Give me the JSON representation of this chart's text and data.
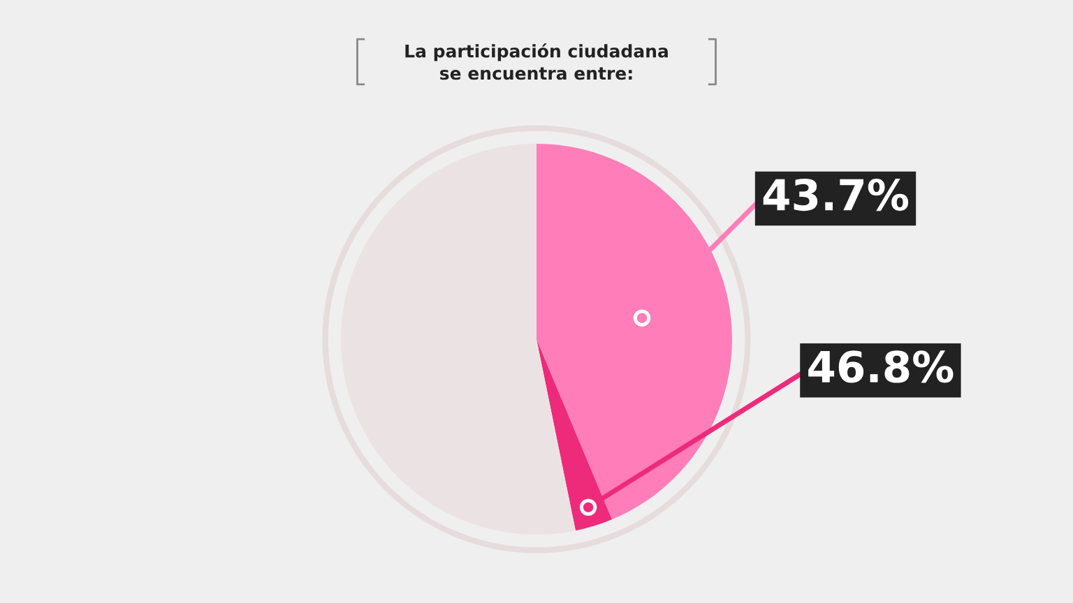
{
  "chart_data": {
    "type": "pie",
    "title": "La participación ciudadana\nse encuentra entre:",
    "categories": [
      null,
      null,
      null
    ],
    "values": [
      43.7,
      3.1,
      53.2
    ],
    "colors": [
      "#ff7eb9",
      "#ee2a7b",
      "#ebe3e3"
    ],
    "value_labels": [
      "43.7%",
      null,
      null
    ],
    "annotations": [
      "46.8%"
    ],
    "legend": false
  }
}
